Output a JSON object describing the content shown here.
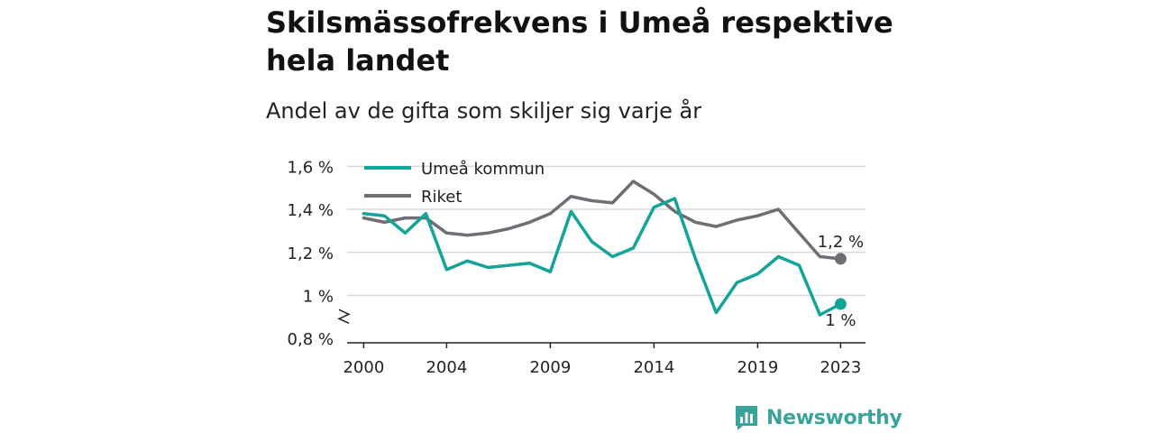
{
  "header": {
    "title": "Skilsmässofrekvens i Umeå respektive hela landet",
    "subtitle": "Andel av de gifta som skiljer sig varje år"
  },
  "brand": {
    "name": "Newsworthy",
    "icon": "bar-chart-badge-icon",
    "color": "#3aa39b"
  },
  "chart_data": {
    "type": "line",
    "title": "Skilsmässofrekvens i Umeå respektive hela landet",
    "subtitle": "Andel av de gifta som skiljer sig varje år",
    "xlabel": "",
    "ylabel": "",
    "x": [
      2000,
      2001,
      2002,
      2003,
      2004,
      2005,
      2006,
      2007,
      2008,
      2009,
      2010,
      2011,
      2012,
      2013,
      2014,
      2015,
      2016,
      2017,
      2018,
      2019,
      2020,
      2021,
      2022,
      2023
    ],
    "x_ticks": [
      2000,
      2004,
      2009,
      2014,
      2019,
      2023
    ],
    "x_tick_labels": [
      "2000",
      "2004",
      "2009",
      "2014",
      "2019",
      "2023"
    ],
    "xlim": [
      1999.2,
      2024.2
    ],
    "ylim": [
      0.78,
      1.66
    ],
    "y_ticks": [
      0.8,
      1.0,
      1.2,
      1.4,
      1.6
    ],
    "y_tick_labels": [
      "0,8 %",
      "1 %",
      "1,2 %",
      "1,4 %",
      "1,6 %"
    ],
    "y_axis_break": true,
    "grid": true,
    "legend_position": "top-left",
    "series": [
      {
        "name": "Umeå kommun",
        "color": "#13a398",
        "values": [
          1.38,
          1.37,
          1.29,
          1.38,
          1.12,
          1.16,
          1.13,
          1.14,
          1.15,
          1.11,
          1.39,
          1.25,
          1.18,
          1.22,
          1.41,
          1.45,
          1.17,
          0.92,
          1.06,
          1.1,
          1.18,
          1.14,
          0.91,
          0.96
        ],
        "end_label": "1 %"
      },
      {
        "name": "Riket",
        "color": "#6e6e74",
        "values": [
          1.36,
          1.34,
          1.36,
          1.36,
          1.29,
          1.28,
          1.29,
          1.31,
          1.34,
          1.38,
          1.46,
          1.44,
          1.43,
          1.53,
          1.47,
          1.39,
          1.34,
          1.32,
          1.35,
          1.37,
          1.4,
          1.29,
          1.18,
          1.17
        ],
        "end_label": "1,2 %"
      }
    ]
  }
}
